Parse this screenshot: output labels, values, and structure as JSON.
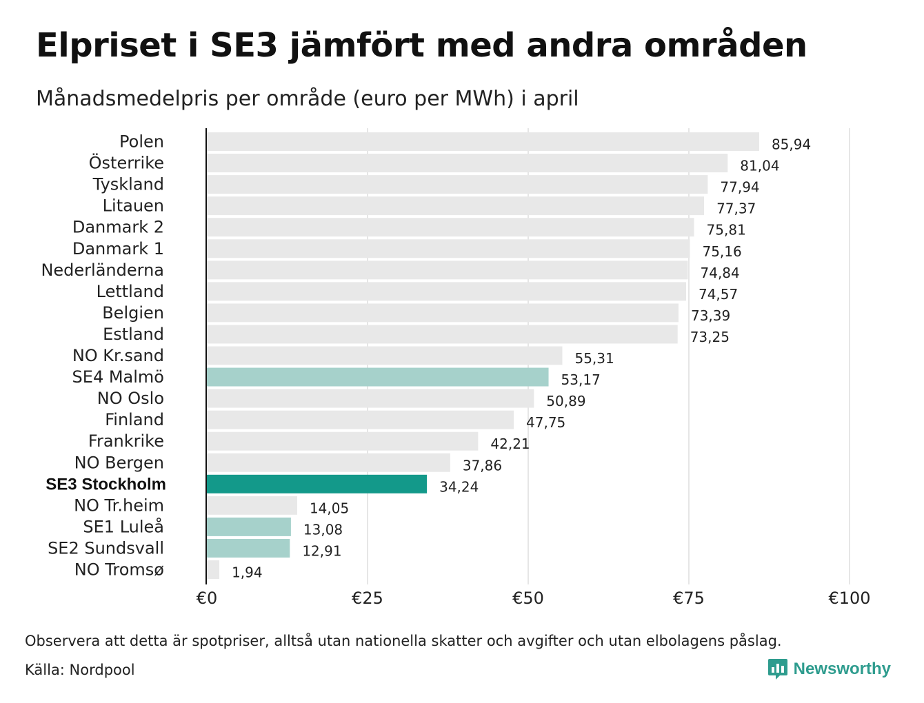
{
  "header": {
    "title": "Elpriset i SE3 jämfört med andra områden",
    "subtitle": "Månadsmedelpris per område (euro per MWh) i april"
  },
  "footer": {
    "note": "Observera att detta är spotpriser, alltså utan nationella skatter och avgifter och utan elbolagens påslag.",
    "source": "Källa: Nordpool",
    "brand": "Newsworthy"
  },
  "colors": {
    "default_bar": "#e8e8e8",
    "swedish_bar": "#a6d1cb",
    "highlight_bar": "#13998a",
    "brand": "#2e9c8e",
    "grid": "#cccccc"
  },
  "chart_data": {
    "type": "bar",
    "orientation": "horizontal",
    "title": "Elpriset i SE3 jämfört med andra områden",
    "subtitle": "Månadsmedelpris per område (euro per MWh) i april",
    "xlim": [
      0,
      100
    ],
    "xticks": [
      0,
      25,
      50,
      75,
      100
    ],
    "xtick_labels": [
      "€0",
      "€25",
      "€50",
      "€75",
      "€100"
    ],
    "grid": true,
    "categories": [
      "Polen",
      "Österrike",
      "Tyskland",
      "Litauen",
      "Danmark  2",
      "Danmark  1",
      "Nederländerna",
      "Lettland",
      "Belgien",
      "Estland",
      "NO Kr.sand",
      "SE4  Malmö",
      "NO Oslo",
      "Finland",
      "Frankrike",
      "NO Bergen",
      "SE3 Stockholm",
      "NO Tr.heim",
      "SE1  Luleå",
      "SE2  Sundsvall",
      "NO Tromsø"
    ],
    "values": [
      85.94,
      81.04,
      77.94,
      77.37,
      75.81,
      75.16,
      74.84,
      74.57,
      73.39,
      73.25,
      55.31,
      53.17,
      50.89,
      47.75,
      42.21,
      37.86,
      34.24,
      14.05,
      13.08,
      12.91,
      1.94
    ],
    "value_labels": [
      "85,94",
      "81,04",
      "77,94",
      "77,37",
      "75,81",
      "75,16",
      "74,84",
      "74,57",
      "73,39",
      "73,25",
      "55,31",
      "53,17",
      "50,89",
      "47,75",
      "42,21",
      "37,86",
      "34,24",
      "14,05",
      "13,08",
      "12,91",
      "1,94"
    ],
    "highlight": [
      "default",
      "default",
      "default",
      "default",
      "default",
      "default",
      "default",
      "default",
      "default",
      "default",
      "default",
      "swedish",
      "default",
      "default",
      "default",
      "default",
      "main",
      "default",
      "swedish",
      "swedish",
      "default"
    ]
  }
}
